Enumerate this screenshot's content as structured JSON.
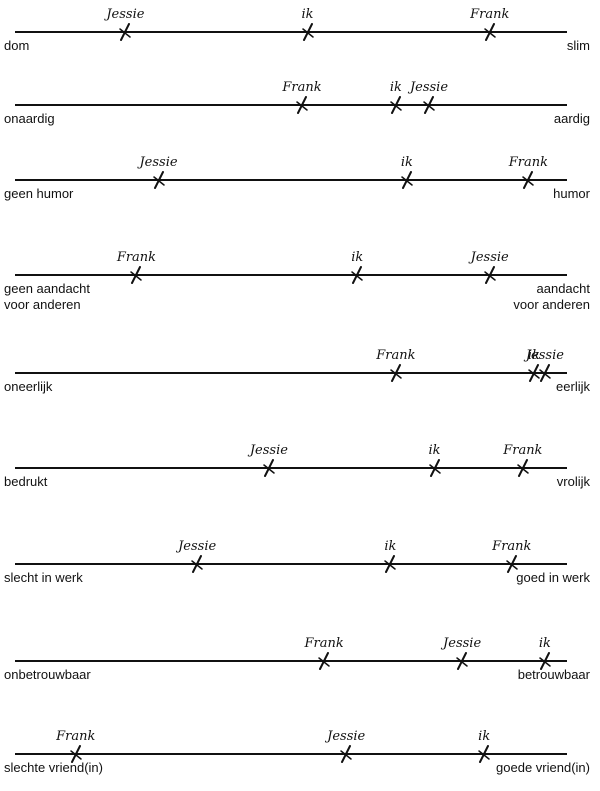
{
  "scales": [
    {
      "left": [
        "dom"
      ],
      "right": [
        "slim"
      ],
      "marks": [
        {
          "name": "Jessie",
          "value": 0.2
        },
        {
          "name": "ik",
          "value": 0.53
        },
        {
          "name": "Frank",
          "value": 0.86
        }
      ]
    },
    {
      "left": [
        "onaardig"
      ],
      "right": [
        "aardig"
      ],
      "marks": [
        {
          "name": "Frank",
          "value": 0.52
        },
        {
          "name": "ik",
          "value": 0.69
        },
        {
          "name": "Jessie",
          "value": 0.75
        }
      ]
    },
    {
      "left": [
        "geen humor"
      ],
      "right": [
        "humor"
      ],
      "marks": [
        {
          "name": "Jessie",
          "value": 0.26
        },
        {
          "name": "ik",
          "value": 0.71
        },
        {
          "name": "Frank",
          "value": 0.93
        }
      ]
    },
    {
      "left": [
        "geen aandacht",
        "voor anderen"
      ],
      "right": [
        "aandacht",
        "voor anderen"
      ],
      "marks": [
        {
          "name": "Frank",
          "value": 0.22
        },
        {
          "name": "ik",
          "value": 0.62
        },
        {
          "name": "Jessie",
          "value": 0.86
        }
      ]
    },
    {
      "left": [
        "oneerlijk"
      ],
      "right": [
        "eerlijk"
      ],
      "marks": [
        {
          "name": "Frank",
          "value": 0.69
        },
        {
          "name": "ik",
          "value": 0.94
        },
        {
          "name": "Jessie",
          "value": 0.96
        }
      ]
    },
    {
      "left": [
        "bedrukt"
      ],
      "right": [
        "vrolijk"
      ],
      "marks": [
        {
          "name": "Jessie",
          "value": 0.46
        },
        {
          "name": "ik",
          "value": 0.76
        },
        {
          "name": "Frank",
          "value": 0.92
        }
      ]
    },
    {
      "left": [
        "slecht in werk"
      ],
      "right": [
        "goed in werk"
      ],
      "marks": [
        {
          "name": "Jessie",
          "value": 0.33
        },
        {
          "name": "ik",
          "value": 0.68
        },
        {
          "name": "Frank",
          "value": 0.9
        }
      ]
    },
    {
      "left": [
        "onbetrouwbaar"
      ],
      "right": [
        "betrouwbaar"
      ],
      "marks": [
        {
          "name": "Frank",
          "value": 0.56
        },
        {
          "name": "Jessie",
          "value": 0.81
        },
        {
          "name": "ik",
          "value": 0.96
        }
      ]
    },
    {
      "left": [
        "slechte vriend(in)"
      ],
      "right": [
        "goede vriend(in)"
      ],
      "marks": [
        {
          "name": "Frank",
          "value": 0.11
        },
        {
          "name": "Jessie",
          "value": 0.6
        },
        {
          "name": "ik",
          "value": 0.85
        }
      ]
    }
  ]
}
